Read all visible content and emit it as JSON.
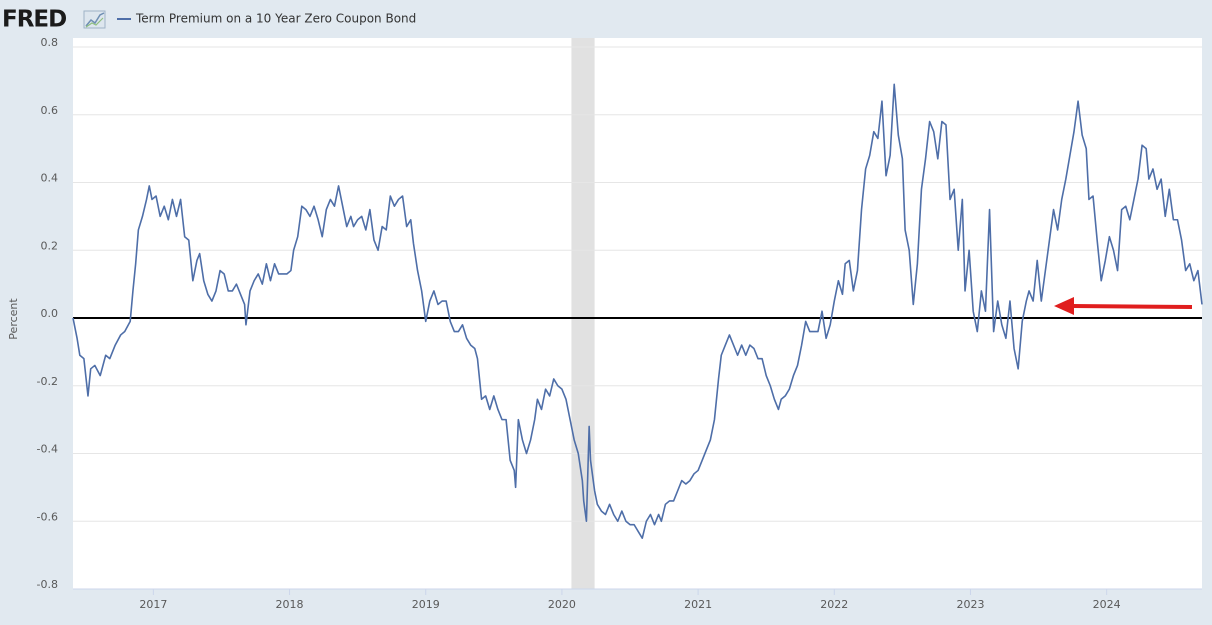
{
  "chart_data": {
    "type": "line",
    "logo": "FRED",
    "ylabel": "Percent",
    "grid": true,
    "reference_line": 0,
    "recessions": [
      [
        2020.07,
        2020.24
      ]
    ],
    "xlim": [
      2016.41,
      2024.7
    ],
    "xticks": [
      2017,
      2018,
      2019,
      2020,
      2021,
      2022,
      2023,
      2024
    ],
    "ylim": [
      -0.8,
      0.8
    ],
    "yticks": [
      0.8,
      0.6,
      0.4,
      0.2,
      {
        "value": 0,
        "label": "0.0"
      },
      -0.2,
      -0.4,
      -0.6,
      -0.8
    ],
    "x": [
      2016.41,
      2016.44,
      2016.46,
      2016.49,
      2016.52,
      2016.54,
      2016.57,
      2016.61,
      2016.65,
      2016.68,
      2016.72,
      2016.76,
      2016.79,
      2016.83,
      2016.85,
      2016.87,
      2016.89,
      2016.92,
      2016.95,
      2016.97,
      2016.99,
      2017.02,
      2017.05,
      2017.08,
      2017.11,
      2017.14,
      2017.17,
      2017.2,
      2017.23,
      2017.26,
      2017.29,
      2017.32,
      2017.34,
      2017.37,
      2017.4,
      2017.43,
      2017.46,
      2017.49,
      2017.52,
      2017.55,
      2017.58,
      2017.61,
      2017.64,
      2017.67,
      2017.68,
      2017.71,
      2017.74,
      2017.77,
      2017.8,
      2017.83,
      2017.86,
      2017.89,
      2017.92,
      2017.95,
      2017.98,
      2018.01,
      2018.03,
      2018.06,
      2018.09,
      2018.12,
      2018.15,
      2018.18,
      2018.21,
      2018.24,
      2018.27,
      2018.3,
      2018.33,
      2018.36,
      2018.39,
      2018.42,
      2018.45,
      2018.47,
      2018.5,
      2018.53,
      2018.56,
      2018.59,
      2018.62,
      2018.65,
      2018.68,
      2018.71,
      2018.74,
      2018.77,
      2018.8,
      2018.83,
      2018.86,
      2018.89,
      2018.91,
      2018.94,
      2018.97,
      2019.0,
      2019.03,
      2019.06,
      2019.09,
      2019.12,
      2019.15,
      2019.18,
      2019.21,
      2019.24,
      2019.27,
      2019.3,
      2019.33,
      2019.36,
      2019.38,
      2019.41,
      2019.44,
      2019.47,
      2019.5,
      2019.53,
      2019.56,
      2019.59,
      2019.62,
      2019.65,
      2019.66,
      2019.68,
      2019.71,
      2019.74,
      2019.77,
      2019.8,
      2019.82,
      2019.85,
      2019.88,
      2019.91,
      2019.94,
      2019.97,
      2020.0,
      2020.03,
      2020.06,
      2020.09,
      2020.12,
      2020.15,
      2020.16,
      2020.18,
      2020.2,
      2020.21,
      2020.24,
      2020.26,
      2020.29,
      2020.32,
      2020.35,
      2020.38,
      2020.41,
      2020.44,
      2020.47,
      2020.5,
      2020.53,
      2020.56,
      2020.59,
      2020.62,
      2020.65,
      2020.68,
      2020.71,
      2020.73,
      2020.76,
      2020.79,
      2020.82,
      2020.85,
      2020.88,
      2020.91,
      2020.94,
      2020.97,
      2021.0,
      2021.03,
      2021.06,
      2021.09,
      2021.12,
      2021.15,
      2021.17,
      2021.2,
      2021.23,
      2021.26,
      2021.29,
      2021.32,
      2021.35,
      2021.38,
      2021.41,
      2021.44,
      2021.47,
      2021.5,
      2021.53,
      2021.56,
      2021.59,
      2021.61,
      2021.64,
      2021.67,
      2021.7,
      2021.73,
      2021.76,
      2021.79,
      2021.82,
      2021.85,
      2021.88,
      2021.91,
      2021.94,
      2021.97,
      2022.0,
      2022.03,
      2022.06,
      2022.08,
      2022.11,
      2022.14,
      2022.17,
      2022.2,
      2022.23,
      2022.26,
      2022.29,
      2022.32,
      2022.35,
      2022.38,
      2022.41,
      2022.44,
      2022.47,
      2022.5,
      2022.52,
      2022.55,
      2022.58,
      2022.61,
      2022.64,
      2022.67,
      2022.7,
      2022.73,
      2022.76,
      2022.79,
      2022.82,
      2022.85,
      2022.88,
      2022.91,
      2022.94,
      2022.96,
      2022.99,
      2023.02,
      2023.05,
      2023.08,
      2023.11,
      2023.14,
      2023.17,
      2023.2,
      2023.23,
      2023.26,
      2023.29,
      2023.32,
      2023.35,
      2023.38,
      2023.41,
      2023.43,
      2023.46,
      2023.49,
      2023.52,
      2023.55,
      2023.58,
      2023.61,
      2023.64,
      2023.67,
      2023.7,
      2023.73,
      2023.76,
      2023.79,
      2023.82,
      2023.85,
      2023.87,
      2023.9,
      2023.93,
      2023.96,
      2023.99,
      2024.02,
      2024.05,
      2024.08,
      2024.11,
      2024.14,
      2024.17,
      2024.2,
      2024.23,
      2024.26,
      2024.29,
      2024.31,
      2024.34,
      2024.37,
      2024.4,
      2024.43,
      2024.46,
      2024.49,
      2024.52,
      2024.55,
      2024.58,
      2024.61,
      2024.64,
      2024.67,
      2024.7
    ],
    "series": [
      {
        "name": "Term Premium on a 10 Year Zero Coupon Bond",
        "color": "#4e6ea8",
        "values": [
          0.0,
          -0.06,
          -0.11,
          -0.12,
          -0.23,
          -0.15,
          -0.14,
          -0.17,
          -0.11,
          -0.12,
          -0.08,
          -0.05,
          -0.04,
          -0.01,
          0.08,
          0.16,
          0.26,
          0.3,
          0.35,
          0.39,
          0.35,
          0.36,
          0.3,
          0.33,
          0.29,
          0.35,
          0.3,
          0.35,
          0.24,
          0.23,
          0.11,
          0.17,
          0.19,
          0.11,
          0.07,
          0.05,
          0.08,
          0.14,
          0.13,
          0.08,
          0.08,
          0.1,
          0.07,
          0.04,
          -0.02,
          0.08,
          0.11,
          0.13,
          0.1,
          0.16,
          0.11,
          0.16,
          0.13,
          0.13,
          0.13,
          0.14,
          0.2,
          0.24,
          0.33,
          0.32,
          0.3,
          0.33,
          0.29,
          0.24,
          0.32,
          0.35,
          0.33,
          0.39,
          0.33,
          0.27,
          0.3,
          0.27,
          0.29,
          0.3,
          0.26,
          0.32,
          0.23,
          0.2,
          0.27,
          0.26,
          0.36,
          0.33,
          0.35,
          0.36,
          0.27,
          0.29,
          0.22,
          0.14,
          0.08,
          -0.01,
          0.05,
          0.08,
          0.04,
          0.05,
          0.05,
          -0.01,
          -0.04,
          -0.04,
          -0.02,
          -0.06,
          -0.08,
          -0.09,
          -0.12,
          -0.24,
          -0.23,
          -0.27,
          -0.23,
          -0.27,
          -0.3,
          -0.3,
          -0.42,
          -0.45,
          -0.5,
          -0.3,
          -0.36,
          -0.4,
          -0.36,
          -0.3,
          -0.24,
          -0.27,
          -0.21,
          -0.23,
          -0.18,
          -0.2,
          -0.21,
          -0.24,
          -0.3,
          -0.36,
          -0.4,
          -0.48,
          -0.54,
          -0.6,
          -0.32,
          -0.42,
          -0.51,
          -0.55,
          -0.57,
          -0.58,
          -0.55,
          -0.58,
          -0.6,
          -0.57,
          -0.6,
          -0.61,
          -0.61,
          -0.63,
          -0.65,
          -0.6,
          -0.58,
          -0.61,
          -0.58,
          -0.6,
          -0.55,
          -0.54,
          -0.54,
          -0.51,
          -0.48,
          -0.49,
          -0.48,
          -0.46,
          -0.45,
          -0.42,
          -0.39,
          -0.36,
          -0.3,
          -0.18,
          -0.11,
          -0.08,
          -0.05,
          -0.08,
          -0.11,
          -0.08,
          -0.11,
          -0.08,
          -0.09,
          -0.12,
          -0.12,
          -0.17,
          -0.2,
          -0.24,
          -0.27,
          -0.24,
          -0.23,
          -0.21,
          -0.17,
          -0.14,
          -0.08,
          -0.01,
          -0.04,
          -0.04,
          -0.04,
          0.02,
          -0.06,
          -0.02,
          0.05,
          0.11,
          0.07,
          0.16,
          0.17,
          0.08,
          0.14,
          0.32,
          0.44,
          0.48,
          0.55,
          0.53,
          0.64,
          0.42,
          0.48,
          0.69,
          0.54,
          0.47,
          0.26,
          0.2,
          0.04,
          0.16,
          0.38,
          0.47,
          0.58,
          0.55,
          0.47,
          0.58,
          0.57,
          0.35,
          0.38,
          0.2,
          0.35,
          0.08,
          0.2,
          0.02,
          -0.04,
          0.08,
          0.02,
          0.32,
          -0.04,
          0.05,
          -0.02,
          -0.06,
          0.05,
          -0.09,
          -0.15,
          -0.01,
          0.05,
          0.08,
          0.05,
          0.17,
          0.05,
          0.14,
          0.23,
          0.32,
          0.26,
          0.35,
          0.41,
          0.48,
          0.55,
          0.64,
          0.54,
          0.5,
          0.35,
          0.36,
          0.23,
          0.11,
          0.17,
          0.24,
          0.2,
          0.14,
          0.32,
          0.33,
          0.29,
          0.35,
          0.41,
          0.51,
          0.5,
          0.41,
          0.44,
          0.38,
          0.41,
          0.3,
          0.38,
          0.29,
          0.29,
          0.23,
          0.14,
          0.16,
          0.11,
          0.14,
          0.04
        ]
      }
    ]
  }
}
